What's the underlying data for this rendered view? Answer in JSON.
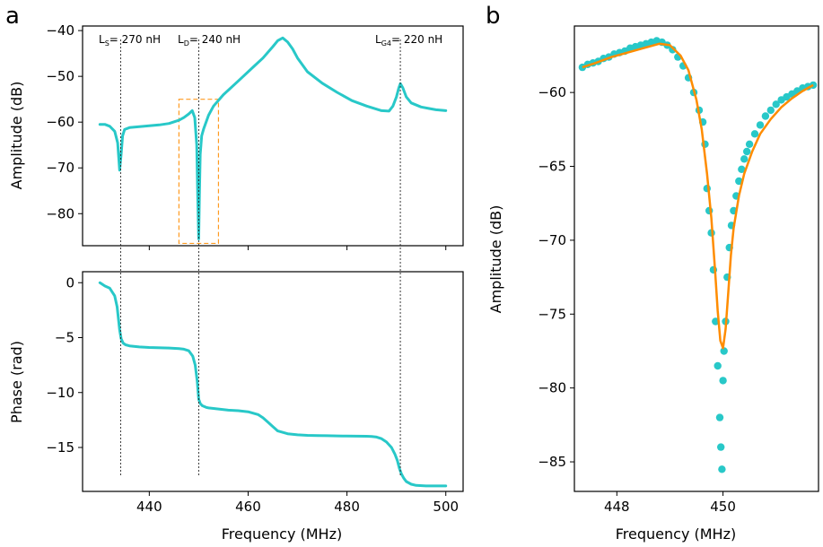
{
  "panel_labels": {
    "a": "a",
    "b": "b"
  },
  "chart_data": [
    {
      "id": "amplitude",
      "type": "line",
      "panel": "a",
      "xlabel": "",
      "ylabel": "Amplitude (dB)",
      "xlim": [
        426.5,
        503.5
      ],
      "ylim": [
        -87,
        -39
      ],
      "yticks": [
        -80,
        -70,
        -60,
        -50,
        -40
      ],
      "series_color": "#28c8c8",
      "series": [
        {
          "name": "",
          "x": [
            430,
            431,
            432,
            433,
            433.6,
            434.0,
            434.3,
            434.6,
            435,
            436,
            438,
            440,
            442,
            444,
            446,
            447,
            448,
            448.7,
            449.2,
            449.6,
            449.8,
            450.0,
            450.15,
            450.3,
            450.6,
            451,
            452,
            453,
            455,
            458,
            461,
            463,
            465,
            466,
            467,
            468,
            469,
            470,
            472,
            475,
            478,
            481,
            484,
            487,
            488.5,
            489.3,
            490,
            490.5,
            490.8,
            491.3,
            492,
            493,
            495,
            497,
            498,
            499,
            500
          ],
          "y": [
            -60.5,
            -60.5,
            -60.9,
            -62,
            -64.5,
            -70.5,
            -67,
            -63,
            -61.6,
            -61.2,
            -61,
            -60.8,
            -60.6,
            -60.3,
            -59.6,
            -59.0,
            -58.2,
            -57.5,
            -59,
            -65,
            -76,
            -85.5,
            -76,
            -67,
            -63,
            -61.5,
            -58.5,
            -56.5,
            -54,
            -51,
            -48,
            -46,
            -43.5,
            -42.2,
            -41.6,
            -42.5,
            -44,
            -46,
            -49,
            -51.5,
            -53.5,
            -55.3,
            -56.5,
            -57.5,
            -57.6,
            -56.5,
            -54.5,
            -52.5,
            -51.6,
            -52.5,
            -54.5,
            -55.8,
            -56.7,
            -57.1,
            -57.3,
            -57.4,
            -57.5
          ]
        }
      ],
      "annotations": [
        {
          "text": "L",
          "sub": "S",
          "rest": "= 270 nH",
          "x": 434.2
        },
        {
          "text": "L",
          "sub": "D",
          "rest": "= 240 nH",
          "x": 450.0
        },
        {
          "text": "L",
          "sub": "G4",
          "rest": "= 220 nH",
          "x": 490.8
        }
      ],
      "highlight_box": {
        "x0": 446,
        "x1": 454,
        "y0": -86.5,
        "y1": -55,
        "color": "#ff9a20"
      }
    },
    {
      "id": "phase",
      "type": "line",
      "panel": "a",
      "xlabel": "Frequency (MHz)",
      "ylabel": "Phase (rad)",
      "xlim": [
        426.5,
        503.5
      ],
      "ylim": [
        -19,
        1
      ],
      "xticks": [
        440,
        460,
        480,
        500
      ],
      "yticks": [
        0,
        -5,
        -10,
        -15
      ],
      "series_color": "#28c8c8",
      "series": [
        {
          "name": "",
          "x": [
            430,
            431,
            432,
            433,
            433.5,
            434.0,
            434.3,
            434.7,
            435.2,
            436,
            438,
            440,
            444,
            446,
            447,
            448,
            448.8,
            449.3,
            449.7,
            450.0,
            450.3,
            450.7,
            451.5,
            452,
            454,
            456,
            458,
            460,
            462,
            463,
            464,
            465,
            466,
            468,
            470,
            472,
            474,
            476,
            478,
            480,
            482,
            484,
            485,
            486,
            487,
            488,
            489,
            489.7,
            490.2,
            490.6,
            491,
            491.5,
            492,
            493,
            494,
            496,
            498,
            500
          ],
          "y": [
            0,
            -0.3,
            -0.5,
            -1.2,
            -2.2,
            -4.3,
            -5.1,
            -5.5,
            -5.65,
            -5.75,
            -5.85,
            -5.9,
            -5.95,
            -6.0,
            -6.05,
            -6.2,
            -6.7,
            -7.5,
            -9.0,
            -10.6,
            -11.0,
            -11.2,
            -11.35,
            -11.4,
            -11.5,
            -11.6,
            -11.65,
            -11.75,
            -12.0,
            -12.3,
            -12.7,
            -13.1,
            -13.5,
            -13.75,
            -13.85,
            -13.9,
            -13.92,
            -13.93,
            -13.95,
            -13.96,
            -13.97,
            -13.98,
            -14.0,
            -14.05,
            -14.2,
            -14.5,
            -15.0,
            -15.6,
            -16.2,
            -16.9,
            -17.4,
            -17.8,
            -18.1,
            -18.35,
            -18.45,
            -18.5,
            -18.5,
            -18.5
          ]
        }
      ]
    },
    {
      "id": "zoom",
      "type": "scatter",
      "panel": "b",
      "xlabel": "Frequency   (MHz)",
      "ylabel": "Amplitude (dB)",
      "xlim": [
        447.2,
        451.8
      ],
      "ylim": [
        -87,
        -55.5
      ],
      "xticks": [
        448,
        450
      ],
      "yticks": [
        -60,
        -65,
        -70,
        -75,
        -80,
        -85
      ],
      "point_color": "#28c8c8",
      "fit_color": "#ff8c00",
      "points": {
        "x": [
          447.35,
          447.45,
          447.55,
          447.65,
          447.75,
          447.85,
          447.95,
          448.05,
          448.15,
          448.25,
          448.35,
          448.45,
          448.55,
          448.65,
          448.75,
          448.85,
          448.95,
          449.05,
          449.15,
          449.25,
          449.35,
          449.45,
          449.55,
          449.62,
          449.66,
          449.7,
          449.74,
          449.78,
          449.82,
          449.86,
          449.9,
          449.94,
          449.96,
          449.98,
          450.0,
          450.02,
          450.05,
          450.08,
          450.12,
          450.16,
          450.2,
          450.25,
          450.3,
          450.35,
          450.4,
          450.45,
          450.5,
          450.6,
          450.7,
          450.8,
          450.9,
          451.0,
          451.1,
          451.2,
          451.3,
          451.4,
          451.5,
          451.6,
          451.7
        ],
        "y": [
          -58.3,
          -58.1,
          -58.0,
          -57.9,
          -57.7,
          -57.6,
          -57.4,
          -57.3,
          -57.2,
          -57.0,
          -56.9,
          -56.8,
          -56.7,
          -56.6,
          -56.5,
          -56.6,
          -56.8,
          -57.1,
          -57.6,
          -58.2,
          -59.0,
          -60.0,
          -61.2,
          -62.0,
          -63.5,
          -66.5,
          -68.0,
          -69.5,
          -72.0,
          -75.5,
          -78.5,
          -82.0,
          -84.0,
          -85.5,
          -79.5,
          -77.5,
          -75.5,
          -72.5,
          -70.5,
          -69.0,
          -68.0,
          -67.0,
          -66.0,
          -65.2,
          -64.5,
          -64.0,
          -63.5,
          -62.8,
          -62.2,
          -61.6,
          -61.2,
          -60.8,
          -60.5,
          -60.3,
          -60.1,
          -59.9,
          -59.7,
          -59.6,
          -59.5
        ]
      },
      "fit": {
        "x": [
          447.35,
          447.6,
          447.9,
          448.2,
          448.5,
          448.8,
          449.0,
          449.2,
          449.35,
          449.5,
          449.6,
          449.7,
          449.78,
          449.85,
          449.9,
          449.95,
          450.0,
          450.05,
          450.1,
          450.15,
          450.2,
          450.3,
          450.4,
          450.55,
          450.7,
          450.9,
          451.1,
          451.3,
          451.5,
          451.7
        ],
        "y": [
          -58.3,
          -58.0,
          -57.6,
          -57.3,
          -57.0,
          -56.7,
          -56.8,
          -57.5,
          -58.5,
          -60.5,
          -62.5,
          -65.5,
          -68.5,
          -72.0,
          -74.8,
          -76.8,
          -77.3,
          -76.0,
          -73.5,
          -71.0,
          -69.2,
          -67.0,
          -65.5,
          -64.0,
          -62.8,
          -61.8,
          -61.0,
          -60.4,
          -59.9,
          -59.5
        ]
      }
    }
  ]
}
